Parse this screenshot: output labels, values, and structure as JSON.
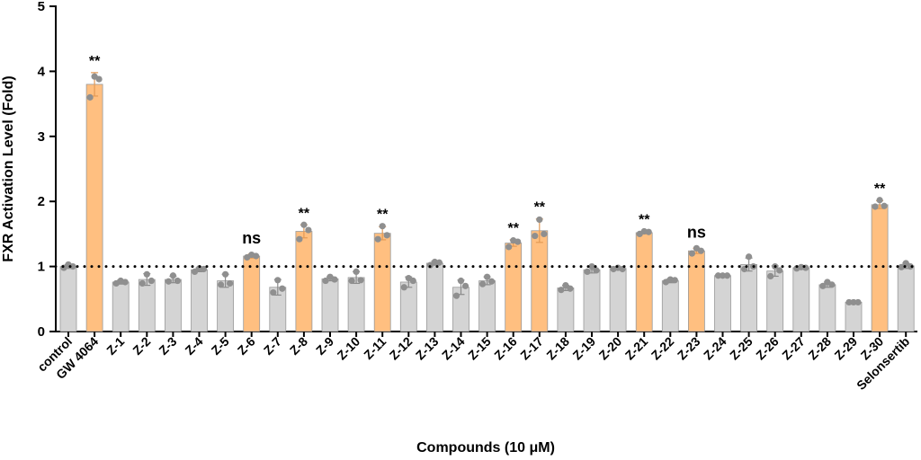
{
  "chart_data": {
    "type": "bar",
    "title": "",
    "xlabel": "Compounds (10 μM)",
    "ylabel": "FXR Activation Level (Fold)",
    "ylim": [
      0,
      5
    ],
    "yticks": [
      0,
      1,
      2,
      3,
      4,
      5
    ],
    "reference_line": 1,
    "grid": false,
    "colors": {
      "default": "#d4d4d4",
      "highlight": "#ffbf80",
      "bar_edge": "#9a9a9a",
      "point": "#8f8f8f",
      "error": "#e39a55"
    },
    "categories": [
      "control",
      "GW 4064",
      "Z-1",
      "Z-2",
      "Z-3",
      "Z-4",
      "Z-5",
      "Z-6",
      "Z-7",
      "Z-8",
      "Z-9",
      "Z-10",
      "Z-11",
      "Z-12",
      "Z-13",
      "Z-14",
      "Z-15",
      "Z-16",
      "Z-17",
      "Z-18",
      "Z-19",
      "Z-20",
      "Z-21",
      "Z-22",
      "Z-23",
      "Z-24",
      "Z-25",
      "Z-26",
      "Z-27",
      "Z-28",
      "Z-29",
      "Z-30",
      "Selonsertib"
    ],
    "values": [
      1.0,
      3.8,
      0.76,
      0.8,
      0.8,
      0.95,
      0.78,
      1.16,
      0.68,
      1.54,
      0.81,
      0.83,
      1.51,
      0.76,
      1.05,
      0.68,
      0.78,
      1.36,
      1.55,
      0.67,
      0.95,
      0.97,
      1.52,
      0.78,
      1.24,
      0.86,
      1.03,
      0.93,
      0.98,
      0.72,
      0.45,
      1.95,
      1.01
    ],
    "errors": [
      0.03,
      0.18,
      0.03,
      0.09,
      0.05,
      0.03,
      0.1,
      0.03,
      0.12,
      0.1,
      0.03,
      0.09,
      0.1,
      0.08,
      0.03,
      0.11,
      0.06,
      0.05,
      0.18,
      0.04,
      0.05,
      0.02,
      0.02,
      0.03,
      0.04,
      0.01,
      0.1,
      0.08,
      0.02,
      0.04,
      0.01,
      0.06,
      0.04
    ],
    "points": [
      [
        0.98,
        1.03,
        1.0
      ],
      [
        3.6,
        3.92,
        3.88
      ],
      [
        0.74,
        0.78,
        0.76
      ],
      [
        0.74,
        0.88,
        0.78
      ],
      [
        0.77,
        0.86,
        0.78
      ],
      [
        0.92,
        0.97,
        0.96
      ],
      [
        0.72,
        0.88,
        0.74
      ],
      [
        1.14,
        1.18,
        1.16
      ],
      [
        0.6,
        0.79,
        0.66
      ],
      [
        1.42,
        1.64,
        1.56
      ],
      [
        0.78,
        0.84,
        0.8
      ],
      [
        0.78,
        0.92,
        0.79
      ],
      [
        1.42,
        1.62,
        1.48
      ],
      [
        0.68,
        0.82,
        0.78
      ],
      [
        1.02,
        1.07,
        1.06
      ],
      [
        0.55,
        0.78,
        0.7
      ],
      [
        0.73,
        0.84,
        0.77
      ],
      [
        1.3,
        1.4,
        1.38
      ],
      [
        1.47,
        1.72,
        1.5
      ],
      [
        0.64,
        0.71,
        0.66
      ],
      [
        0.92,
        1.0,
        0.94
      ],
      [
        0.96,
        0.98,
        0.96
      ],
      [
        1.5,
        1.54,
        1.53
      ],
      [
        0.76,
        0.8,
        0.79
      ],
      [
        1.2,
        1.28,
        1.24
      ],
      [
        0.86,
        0.86,
        0.86
      ],
      [
        0.96,
        1.15,
        1.0
      ],
      [
        0.85,
        1.0,
        0.94
      ],
      [
        0.97,
        0.99,
        0.98
      ],
      [
        0.7,
        0.76,
        0.72
      ],
      [
        0.45,
        0.45,
        0.45
      ],
      [
        1.92,
        2.02,
        1.93
      ],
      [
        0.99,
        1.05,
        1.0
      ]
    ],
    "highlighted": [
      "GW 4064",
      "Z-6",
      "Z-8",
      "Z-11",
      "Z-16",
      "Z-17",
      "Z-21",
      "Z-23",
      "Z-30"
    ],
    "annotations": [
      {
        "category": "GW 4064",
        "text": "**"
      },
      {
        "category": "Z-6",
        "text": "ns"
      },
      {
        "category": "Z-8",
        "text": "**"
      },
      {
        "category": "Z-11",
        "text": "**"
      },
      {
        "category": "Z-16",
        "text": "**"
      },
      {
        "category": "Z-17",
        "text": "**"
      },
      {
        "category": "Z-21",
        "text": "**"
      },
      {
        "category": "Z-23",
        "text": "ns"
      },
      {
        "category": "Z-30",
        "text": "**"
      }
    ]
  }
}
